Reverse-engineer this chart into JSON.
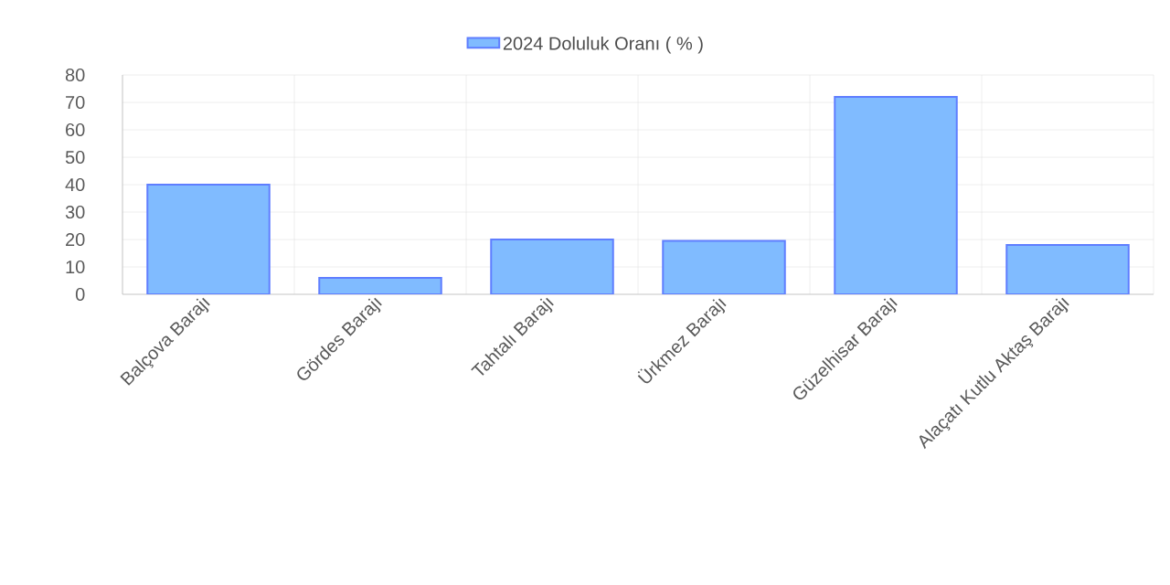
{
  "chart_data": {
    "type": "bar",
    "categories": [
      "Balçova Barajı",
      "Gördes Barajı",
      "Tahtalı Barajı",
      "Ürkmez Barajı",
      "Güzelhisar Barajı",
      "Alaçatı Kutlu Aktaş Barajı"
    ],
    "series": [
      {
        "name": "2024 Doluluk Oranı ( % )",
        "color": "#80bbff",
        "values": [
          40,
          6,
          20,
          19.5,
          72,
          18
        ]
      }
    ],
    "ylim": [
      0,
      80
    ],
    "yticks": [
      0,
      10,
      20,
      30,
      40,
      50,
      60,
      70,
      80
    ],
    "grid": true,
    "legend": "top"
  }
}
